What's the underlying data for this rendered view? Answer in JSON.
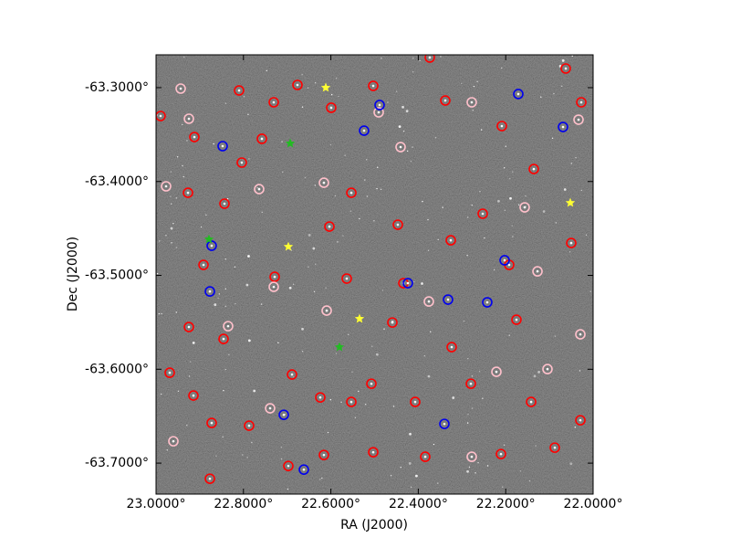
{
  "chart_data": {
    "type": "scatter",
    "xlabel": "RA (J2000)",
    "ylabel": "Dec (J2000)",
    "xlim": [
      23.0,
      22.0
    ],
    "ylim": [
      -63.733,
      -63.265
    ],
    "xticks": [
      {
        "value": 23.0,
        "label": "23.0000°"
      },
      {
        "value": 22.8,
        "label": "22.8000°"
      },
      {
        "value": 22.6,
        "label": "22.6000°"
      },
      {
        "value": 22.4,
        "label": "22.4000°"
      },
      {
        "value": 22.2,
        "label": "22.2000°"
      },
      {
        "value": 22.0,
        "label": "22.0000°"
      }
    ],
    "yticks": [
      {
        "value": -63.3,
        "label": "-63.3000°"
      },
      {
        "value": -63.4,
        "label": "-63.4000°"
      },
      {
        "value": -63.5,
        "label": "-63.5000°"
      },
      {
        "value": -63.6,
        "label": "-63.6000°"
      },
      {
        "value": -63.7,
        "label": "-63.7000°"
      }
    ],
    "background": "#2e2e2e",
    "series": [
      {
        "color": "#ff0000",
        "marker": "ring",
        "x": [
          22.9896,
          22.9123,
          22.9269,
          22.81,
          22.7307,
          22.7578,
          22.8038,
          22.8434,
          22.8914,
          22.9248,
          22.9687,
          22.9144,
          22.8727,
          22.8768,
          22.7871,
          22.6973,
          22.6159,
          22.5031,
          22.3841,
          22.2108,
          22.0877,
          22.0292,
          22.1419,
          22.2797,
          22.4071,
          22.5532,
          22.6242,
          22.6889,
          22.8455,
          22.7286,
          22.6033,
          22.5532,
          22.4468,
          22.3257,
          22.2526,
          22.1357,
          22.0271,
          22.2088,
          22.3382,
          22.5031,
          22.5992,
          22.6764,
          22.5637,
          22.4342,
          22.1921,
          22.0501,
          22.1754,
          22.3236,
          22.4593,
          22.0626,
          22.3737,
          22.5073
        ],
        "y": [
          -63.3302,
          -63.3526,
          -63.412,
          -63.303,
          -63.3156,
          -63.3545,
          -63.3798,
          -63.4236,
          -63.4888,
          -63.555,
          -63.6037,
          -63.628,
          -63.6572,
          -63.7166,
          -63.6601,
          -63.703,
          -63.6913,
          -63.6884,
          -63.6932,
          -63.6903,
          -63.6835,
          -63.6543,
          -63.6348,
          -63.6154,
          -63.6348,
          -63.6348,
          -63.63,
          -63.6056,
          -63.5677,
          -63.5015,
          -63.448,
          -63.412,
          -63.446,
          -63.4626,
          -63.4343,
          -63.3867,
          -63.3156,
          -63.3409,
          -63.3137,
          -63.2981,
          -63.3214,
          -63.2971,
          -63.5034,
          -63.5083,
          -63.4888,
          -63.4655,
          -63.5472,
          -63.5764,
          -63.5502,
          -63.2796,
          -63.2679,
          -63.6154
        ]
      },
      {
        "color": "#ffc0cb",
        "marker": "ring",
        "x": [
          22.9436,
          22.9248,
          22.977,
          22.7641,
          22.7307,
          22.8351,
          22.9603,
          22.739,
          22.6096,
          22.4906,
          22.4405,
          22.2777,
          22.0334,
          22.1566,
          22.1273,
          22.0292,
          22.2777,
          22.2213,
          22.1044,
          22.6159,
          22.3758
        ],
        "y": [
          -63.301,
          -63.3331,
          -63.4051,
          -63.4081,
          -63.5122,
          -63.5541,
          -63.6767,
          -63.6416,
          -63.5375,
          -63.3263,
          -63.3633,
          -63.3156,
          -63.3341,
          -63.4275,
          -63.4957,
          -63.5628,
          -63.6932,
          -63.6027,
          -63.5998,
          -63.4013,
          -63.5278
        ]
      },
      {
        "color": "#0000ee",
        "marker": "ring",
        "x": [
          22.8476,
          22.8727,
          22.8768,
          22.6618,
          22.7077,
          22.4885,
          22.524,
          22.4238,
          22.3319,
          22.2422,
          22.2025,
          22.1712,
          22.0689,
          22.3403
        ],
        "y": [
          -63.3623,
          -63.4684,
          -63.5171,
          -63.7069,
          -63.6485,
          -63.3185,
          -63.3458,
          -63.5083,
          -63.5258,
          -63.5287,
          -63.4839,
          -63.3068,
          -63.3419,
          -63.6582
        ]
      },
      {
        "color": "#ffff33",
        "marker": "star",
        "x": [
          22.6117,
          22.6973,
          22.5345,
          22.0522
        ],
        "y": [
          -63.3,
          -63.4694,
          -63.5462,
          -63.4227
        ]
      },
      {
        "color": "#22bb22",
        "marker": "star",
        "x": [
          22.8789,
          22.5804,
          22.6931
        ],
        "y": [
          -63.4616,
          -63.5764,
          -63.3594
        ]
      }
    ]
  }
}
